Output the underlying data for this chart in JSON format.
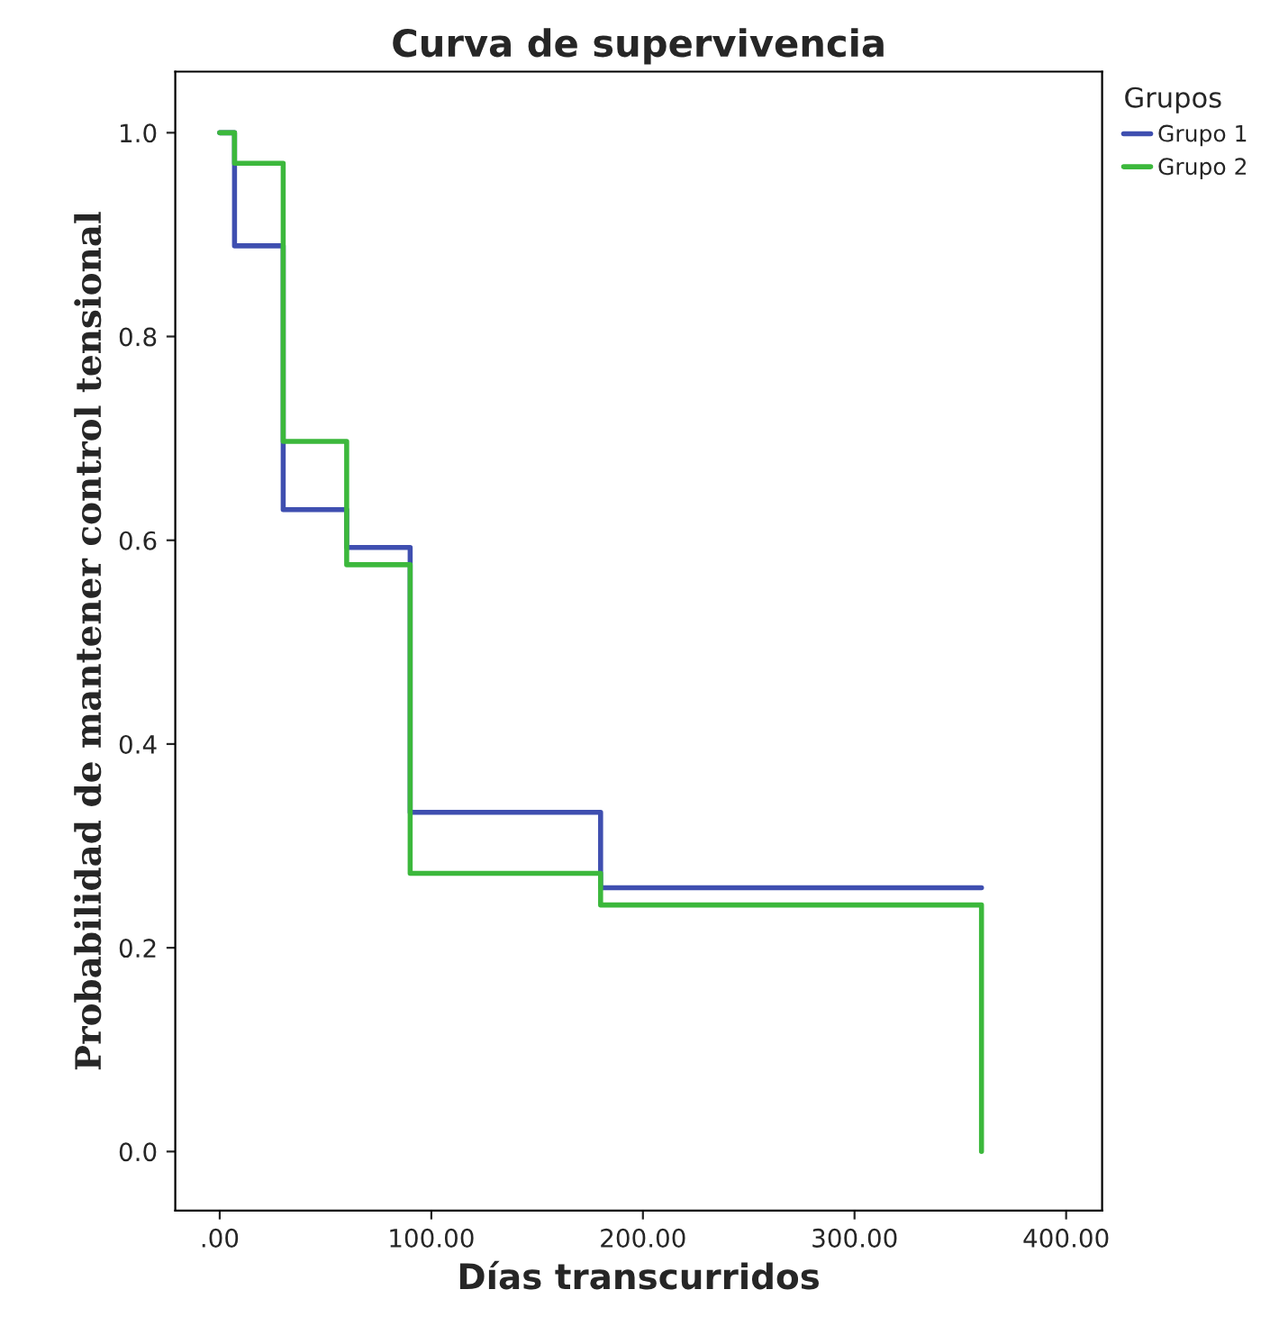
{
  "chart_data": {
    "type": "step",
    "title": "Curva de supervivencia",
    "xlabel": "Días transcurridos",
    "ylabel": "Probabilidad de mantener control tensional",
    "legend_title": "Grupos",
    "x": [
      0,
      7,
      30,
      60,
      90,
      180,
      360
    ],
    "series": [
      {
        "name": "Grupo 1",
        "color": "#3f4fb0",
        "values": [
          1.0,
          0.889,
          0.63,
          0.593,
          0.333,
          0.259,
          0.259
        ]
      },
      {
        "name": "Grupo 2",
        "color": "#3cb83c",
        "values": [
          1.0,
          0.97,
          0.697,
          0.576,
          0.273,
          0.242,
          0.0
        ]
      }
    ],
    "xlim": [
      -21,
      417
    ],
    "ylim": [
      -0.058,
      1.06
    ],
    "xticks": [
      {
        "value": 0,
        "label": ".00"
      },
      {
        "value": 100,
        "label": "100.00"
      },
      {
        "value": 200,
        "label": "200.00"
      },
      {
        "value": 300,
        "label": "300.00"
      },
      {
        "value": 400,
        "label": "400.00"
      }
    ],
    "yticks": [
      {
        "value": 0,
        "label": "0.0"
      },
      {
        "value": 0.2,
        "label": "0.2"
      },
      {
        "value": 0.4,
        "label": "0.4"
      },
      {
        "value": 0.6,
        "label": "0.6"
      },
      {
        "value": 0.8,
        "label": "0.8"
      },
      {
        "value": 1.0,
        "label": "1.0"
      }
    ],
    "grid": false,
    "legend": "top right"
  }
}
